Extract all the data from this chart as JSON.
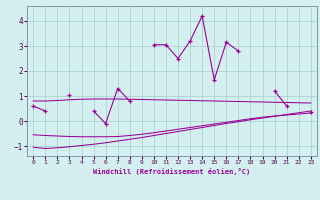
{
  "x": [
    0,
    1,
    2,
    3,
    4,
    5,
    6,
    7,
    8,
    9,
    10,
    11,
    12,
    13,
    14,
    15,
    16,
    17,
    18,
    19,
    20,
    21,
    22,
    23
  ],
  "line1": [
    0.6,
    0.4,
    null,
    1.05,
    null,
    0.4,
    -0.1,
    1.3,
    0.8,
    null,
    3.05,
    3.05,
    2.5,
    3.2,
    4.2,
    1.65,
    3.15,
    2.8,
    null,
    null,
    1.2,
    0.6,
    null,
    0.35
  ],
  "line_flat1": [
    0.8,
    0.8,
    0.82,
    0.85,
    0.87,
    0.88,
    0.88,
    0.88,
    0.87,
    0.86,
    0.85,
    0.84,
    0.83,
    0.82,
    0.81,
    0.8,
    0.79,
    0.78,
    0.77,
    0.76,
    0.75,
    0.74,
    0.73,
    0.72
  ],
  "line_flat2": [
    -0.55,
    -0.58,
    -0.6,
    -0.62,
    -0.63,
    -0.63,
    -0.63,
    -0.62,
    -0.58,
    -0.53,
    -0.47,
    -0.4,
    -0.33,
    -0.26,
    -0.19,
    -0.12,
    -0.05,
    0.02,
    0.09,
    0.15,
    0.2,
    0.24,
    0.28,
    0.32
  ],
  "line_flat3": [
    -1.05,
    -1.1,
    -1.07,
    -1.03,
    -0.98,
    -0.93,
    -0.87,
    -0.8,
    -0.73,
    -0.66,
    -0.58,
    -0.5,
    -0.42,
    -0.34,
    -0.26,
    -0.18,
    -0.1,
    -0.03,
    0.05,
    0.12,
    0.19,
    0.26,
    0.33,
    0.4
  ],
  "color_main": "#990099",
  "bg_color": "#d4efef",
  "grid_color": "#aacccc",
  "xlabel": "Windchill (Refroidissement éolien,°C)",
  "ylim": [
    -1.4,
    4.6
  ],
  "xlim": [
    -0.5,
    23.5
  ],
  "xticks": [
    0,
    1,
    2,
    3,
    4,
    5,
    6,
    7,
    8,
    9,
    10,
    11,
    12,
    13,
    14,
    15,
    16,
    17,
    18,
    19,
    20,
    21,
    22,
    23
  ],
  "yticks": [
    -1,
    0,
    1,
    2,
    3,
    4
  ]
}
